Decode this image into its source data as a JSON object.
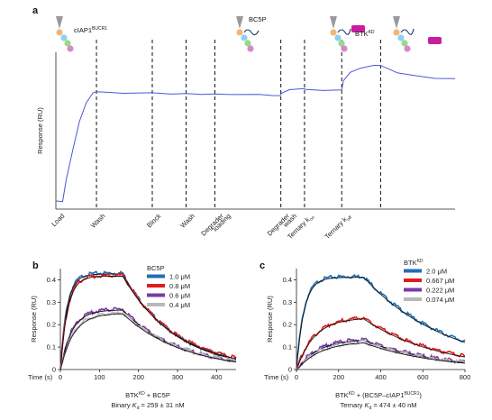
{
  "panels": {
    "a": "a",
    "b": "b",
    "c": "c"
  },
  "colors": {
    "sensorgram": "#4b57d6",
    "c_1": "#1f6fb5",
    "c_2": "#e21c1c",
    "c_3": "#7b3aa6",
    "c_4": "#b8b8b8",
    "fit": "#111111",
    "ligase": "#f2b57a",
    "ligase2": "#8fd0f0",
    "ligase3": "#97d98a",
    "ligase4": "#d987c9",
    "btk": "#c71ea0",
    "anchor": "#9a9a9a"
  },
  "chart_data": [
    {
      "id": "a",
      "type": "line",
      "title": "",
      "xlabel": "",
      "ylabel": "Response (RU)",
      "phases": [
        {
          "label_main": "Load",
          "label_sup": "",
          "label_sub": ""
        },
        {
          "label_main": "Wash",
          "label_sup": "",
          "label_sub": ""
        },
        {
          "label_main": "Block",
          "label_sup": "",
          "label_sub": ""
        },
        {
          "label_main": "Wash",
          "label_sup": "",
          "label_sub": ""
        },
        {
          "label_main": "Degrader",
          "label_line2": "loading",
          "label_sup": "",
          "label_sub": ""
        },
        {
          "label_main": "Degrader",
          "label_line2": "wash",
          "label_sup": "",
          "label_sub": ""
        },
        {
          "label_main": "Ternary k",
          "label_sup": "",
          "label_sub": "on"
        },
        {
          "label_main": "Ternary k",
          "label_sup": "",
          "label_sub": "off"
        }
      ],
      "boundaries": [
        0.12,
        0.285,
        0.385,
        0.47,
        0.665,
        0.735,
        0.845,
        0.96
      ],
      "trace": [
        [
          0.0,
          0.05
        ],
        [
          0.02,
          0.05
        ],
        [
          0.03,
          0.18
        ],
        [
          0.05,
          0.38
        ],
        [
          0.07,
          0.56
        ],
        [
          0.09,
          0.68
        ],
        [
          0.11,
          0.74
        ],
        [
          0.12,
          0.75
        ],
        [
          0.14,
          0.745
        ],
        [
          0.2,
          0.74
        ],
        [
          0.285,
          0.74
        ],
        [
          0.34,
          0.735
        ],
        [
          0.385,
          0.735
        ],
        [
          0.43,
          0.733
        ],
        [
          0.47,
          0.732
        ],
        [
          0.52,
          0.732
        ],
        [
          0.6,
          0.73
        ],
        [
          0.64,
          0.726
        ],
        [
          0.663,
          0.722
        ],
        [
          0.667,
          0.74
        ],
        [
          0.69,
          0.76
        ],
        [
          0.735,
          0.77
        ],
        [
          0.736,
          0.762
        ],
        [
          0.79,
          0.758
        ],
        [
          0.845,
          0.758
        ],
        [
          0.85,
          0.82
        ],
        [
          0.87,
          0.87
        ],
        [
          0.9,
          0.9
        ],
        [
          0.94,
          0.915
        ],
        [
          0.96,
          0.918
        ],
        [
          0.975,
          0.9
        ],
        [
          1.01,
          0.87
        ],
        [
          1.06,
          0.85
        ],
        [
          1.12,
          0.835
        ],
        [
          1.18,
          0.83
        ]
      ],
      "labels": {
        "ciap1_main": "cIAP1",
        "ciap1_sup": "BUCR1",
        "bc5p": "BC5P",
        "btk_main": "BTK",
        "btk_sup": "KD"
      }
    },
    {
      "id": "b",
      "type": "line",
      "title": "BC5P",
      "xlabel": "Time (s)",
      "ylabel": "Response (RU)",
      "xlim": [
        0,
        450
      ],
      "ylim": [
        0,
        0.45
      ],
      "xticks": [
        0,
        100,
        200,
        300,
        400
      ],
      "yticks": [
        0,
        0.1,
        0.2,
        0.3,
        0.4
      ],
      "caption_line1_main": "BTK",
      "caption_line1_sup": "KD",
      "caption_line1_rest": " + BC5P",
      "caption_line2_pre": "Binary ",
      "caption_line2_k": "K",
      "caption_line2_sub": "d",
      "caption_line2_rest": " = 259 ± 31 nM",
      "t_end_association": 160,
      "t_max": 450,
      "series": [
        {
          "name": "1.0 μM",
          "rmax": 0.43,
          "kobs": 0.06,
          "koff": 0.0075,
          "drop": 0.0
        },
        {
          "name": "0.8 μM",
          "rmax": 0.42,
          "kobs": 0.055,
          "koff": 0.0072,
          "drop": 0.0
        },
        {
          "name": "0.6 μM",
          "rmax": 0.27,
          "kobs": 0.035,
          "koff": 0.0068,
          "drop": 0.0
        },
        {
          "name": "0.4 μM",
          "rmax": 0.255,
          "kobs": 0.03,
          "koff": 0.0065,
          "drop": 0.0
        }
      ]
    },
    {
      "id": "c",
      "type": "line",
      "title": "BTK",
      "title_sup": "KD",
      "xlabel": "Time (s)",
      "ylabel": "Response (RU)",
      "xlim": [
        0,
        800
      ],
      "ylim": [
        0,
        0.45
      ],
      "xticks": [
        0,
        200,
        400,
        600,
        800
      ],
      "yticks": [
        0,
        0.1,
        0.2,
        0.3,
        0.4
      ],
      "caption_line1_main": "BTK",
      "caption_line1_sup": "KD",
      "caption_line1_mid": " + (BC5P–cIAP1",
      "caption_line1_sup2": "BUCR1",
      "caption_line1_rest": ")",
      "caption_line2_pre": "Ternary ",
      "caption_line2_k": "K",
      "caption_line2_sub": "d",
      "caption_line2_rest": " = 474 ± 40 nM",
      "t_end_association": 320,
      "t_max": 800,
      "series": [
        {
          "name": "2.0 μM",
          "rmax": 0.415,
          "kobs": 0.028,
          "koff": 0.0025,
          "drop": 0.0
        },
        {
          "name": "0.667 μM",
          "rmax": 0.235,
          "kobs": 0.012,
          "koff": 0.0028,
          "drop": 0.0
        },
        {
          "name": "0.222 μM",
          "rmax": 0.14,
          "kobs": 0.01,
          "koff": 0.0028,
          "drop": 0.0
        },
        {
          "name": "0.074 μM",
          "rmax": 0.13,
          "kobs": 0.009,
          "koff": 0.0028,
          "drop": 0.0
        }
      ]
    }
  ]
}
